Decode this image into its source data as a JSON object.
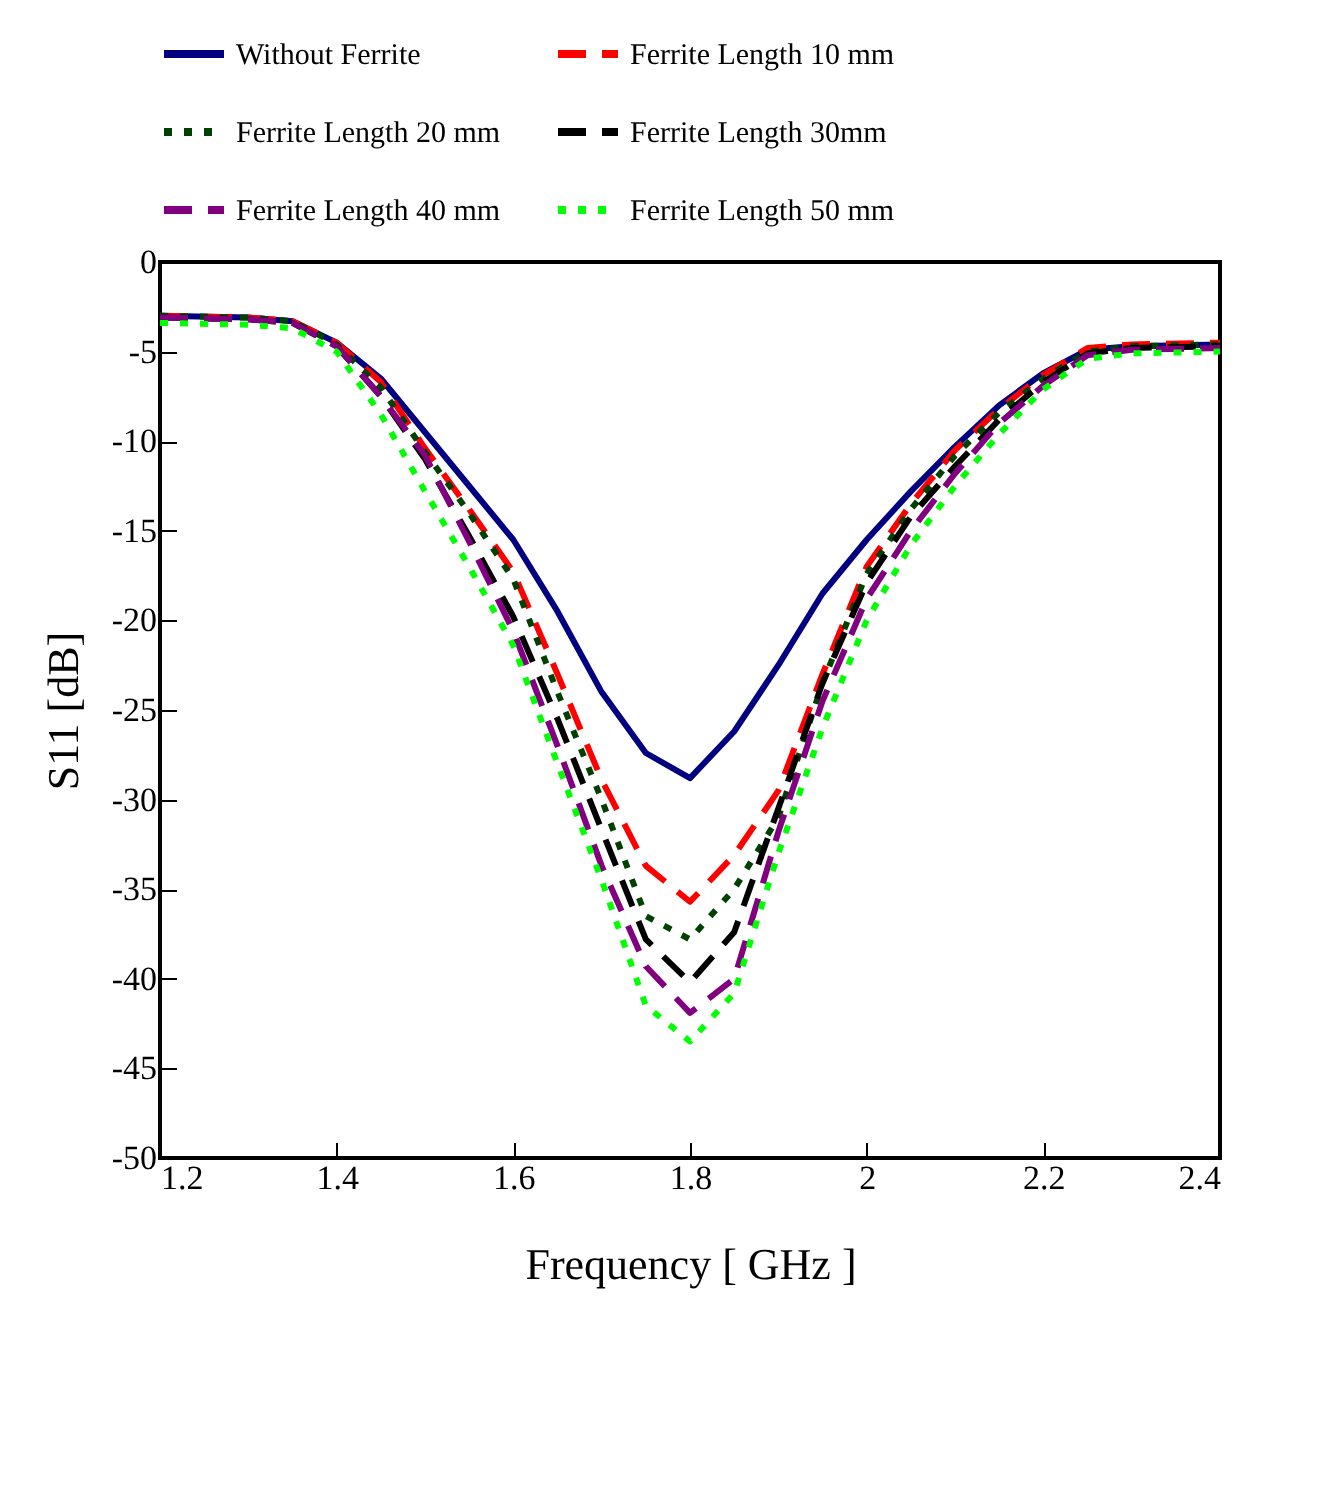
{
  "chart_data": {
    "type": "line",
    "xlabel": "Frequency [ GHz ]",
    "ylabel": "S11 [dB]",
    "x": [
      1.2,
      1.3,
      1.35,
      1.4,
      1.45,
      1.5,
      1.55,
      1.6,
      1.65,
      1.7,
      1.75,
      1.8,
      1.85,
      1.9,
      1.95,
      2.0,
      2.05,
      2.1,
      2.15,
      2.2,
      2.25,
      2.3,
      2.4
    ],
    "series": [
      {
        "name": "Without Ferrite",
        "color": "#000080",
        "line_style": "solid",
        "values": [
          -3,
          -3.1,
          -3.3,
          -4.5,
          -6.5,
          -9.5,
          -12.5,
          -15.5,
          -19.5,
          -24,
          -27.4,
          -28.8,
          -26.2,
          -22.5,
          -18.5,
          -15.5,
          -12.8,
          -10.3,
          -8,
          -6.2,
          -4.9,
          -4.7,
          -4.6
        ]
      },
      {
        "name": "Ferrite Length 10 mm",
        "color": "#ff0000",
        "line_style": "dashed",
        "values": [
          -3,
          -3.1,
          -3.3,
          -4.5,
          -6.7,
          -10.4,
          -13.8,
          -17.3,
          -23,
          -28.9,
          -33.7,
          -35.7,
          -33.1,
          -29.5,
          -23,
          -17,
          -13.5,
          -10.5,
          -8.2,
          -6.3,
          -4.8,
          -4.6,
          -4.5
        ]
      },
      {
        "name": "Ferrite Length 20 mm",
        "color": "#004000",
        "line_style": "dotted",
        "values": [
          -3,
          -3.1,
          -3.3,
          -4.6,
          -7,
          -10.6,
          -14,
          -17.7,
          -24,
          -30,
          -36.5,
          -37.8,
          -35,
          -31,
          -23.5,
          -17.4,
          -13.8,
          -10.8,
          -8.4,
          -6.5,
          -5,
          -4.7,
          -4.6
        ]
      },
      {
        "name": "Ferrite Length 30mm",
        "color": "#000000",
        "line_style": "dashed",
        "values": [
          -3.1,
          -3.2,
          -3.4,
          -4.7,
          -7.5,
          -11,
          -15.3,
          -19.8,
          -25.5,
          -31.7,
          -37.8,
          -40.2,
          -37.4,
          -30.5,
          -23.5,
          -17.9,
          -14.2,
          -11.4,
          -8.8,
          -6.7,
          -5.1,
          -4.8,
          -4.7
        ]
      },
      {
        "name": "Ferrite Length 40 mm",
        "color": "#800080",
        "line_style": "dashed",
        "values": [
          -3.1,
          -3.2,
          -3.4,
          -4.7,
          -7.5,
          -10.8,
          -15.6,
          -20.6,
          -27,
          -33.7,
          -39.3,
          -41.9,
          -40,
          -31.8,
          -24.5,
          -18.8,
          -15,
          -11.8,
          -9,
          -6.9,
          -5.2,
          -4.9,
          -4.8
        ]
      },
      {
        "name": "Ferrite Length 50 mm",
        "color": "#00ff00",
        "line_style": "dotted",
        "values": [
          -3.4,
          -3.5,
          -3.7,
          -5,
          -8.5,
          -12.8,
          -17,
          -21.4,
          -28,
          -34.5,
          -41.5,
          -43.5,
          -40.8,
          -33,
          -26,
          -20,
          -15.8,
          -12.5,
          -9.6,
          -7.1,
          -5.4,
          -5.1,
          -5.0
        ]
      }
    ],
    "xlim": [
      1.2,
      2.4
    ],
    "xticks": [
      1.2,
      1.4,
      1.6,
      1.8,
      2,
      2.2,
      2.4
    ],
    "ylim": [
      -50,
      0
    ],
    "yticks": [
      -50,
      -45,
      -40,
      -35,
      -30,
      -25,
      -20,
      -15,
      -10,
      -5,
      0
    ],
    "grid": false,
    "legend": "top",
    "marker": "none"
  }
}
